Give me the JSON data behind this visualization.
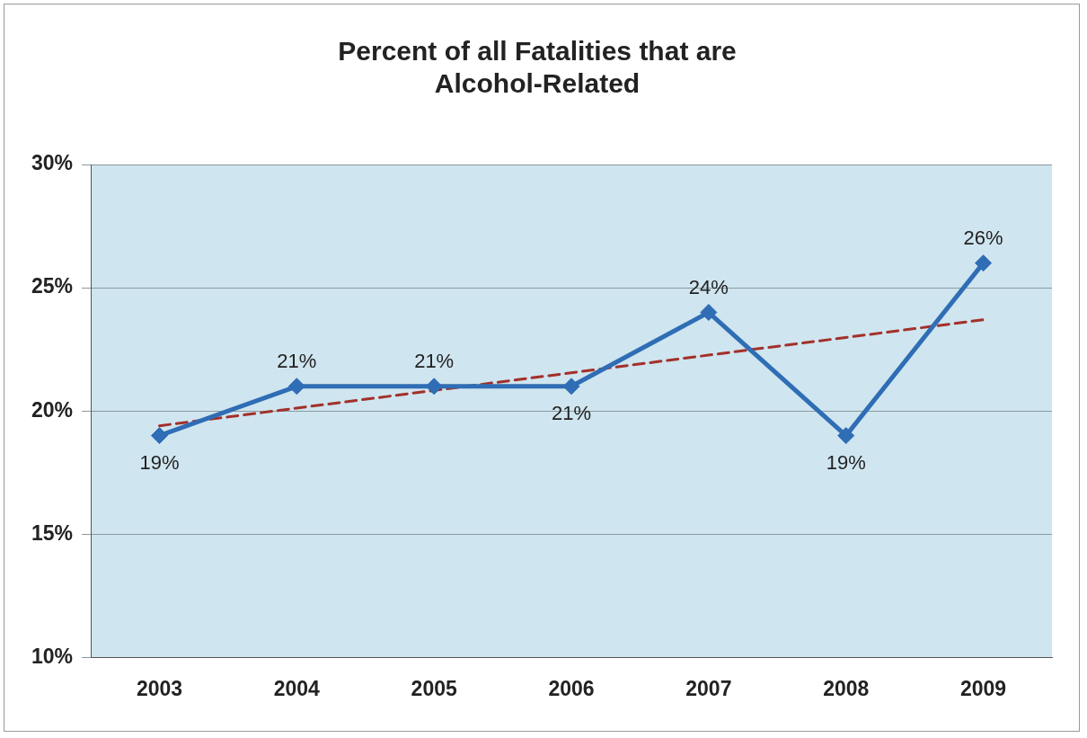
{
  "chart_data": {
    "type": "line",
    "title": [
      "Percent of all Fatalities that are",
      "Alcohol-Related"
    ],
    "categories": [
      "2003",
      "2004",
      "2005",
      "2006",
      "2007",
      "2008",
      "2009"
    ],
    "series": [
      {
        "color": "#2f6db5",
        "values": [
          19,
          21,
          21,
          21,
          24,
          19,
          26
        ],
        "value_labels": [
          "19%",
          "21%",
          "21%",
          "21%",
          "24%",
          "19%",
          "26%"
        ],
        "marker": "diamond",
        "line_style": "solid"
      },
      {
        "type": "line",
        "color": "#a3302a",
        "values": [
          19.4,
          null,
          null,
          null,
          null,
          null,
          23.7
        ],
        "marker": "none",
        "line_style": "dashed"
      }
    ],
    "ylim": [
      10,
      30
    ],
    "yticks": [
      {
        "value": 10,
        "label": "10%"
      },
      {
        "value": 15,
        "label": "15%"
      },
      {
        "value": 20,
        "label": "20%"
      },
      {
        "value": 25,
        "label": "25%"
      },
      {
        "value": 30,
        "label": "30%"
      }
    ],
    "grid": "y",
    "legend": false
  }
}
